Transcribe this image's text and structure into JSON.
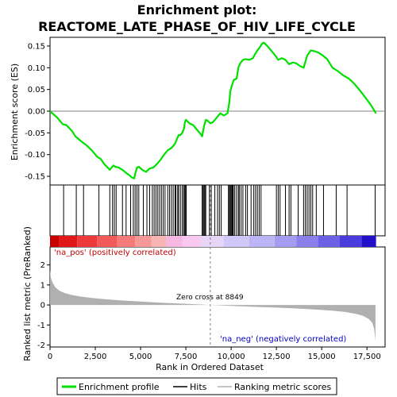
{
  "chart_data": {
    "type": "line",
    "title_line1": "Enrichment plot:",
    "title_line2": "REACTOME_LATE_PHASE_OF_HIV_LIFE_CYCLE",
    "es_ylabel": "Enrichment score (ES)",
    "metric_ylabel": "Ranked list metric (PreRanked)",
    "xlabel": "Rank in Ordered Dataset",
    "x_ticks": [
      "0",
      "2,500",
      "5,000",
      "7,500",
      "10,000",
      "12,500",
      "15,000",
      "17,500"
    ],
    "es_ticks": [
      "0.15",
      "0.10",
      "0.05",
      "0.00",
      "-0.05",
      "-0.10",
      "-0.15"
    ],
    "metric_ticks": [
      "2",
      "1",
      "0",
      "-1",
      "-2"
    ],
    "xlim": [
      0,
      18500
    ],
    "es_ylim": [
      -0.17,
      0.17
    ],
    "metric_ylim": [
      -2.1,
      2.9
    ],
    "zero_cross_label": "Zero cross at 8849",
    "zero_cross_rank": 8849,
    "pos_label": "'na_pos' (positively correlated)",
    "neg_label": "'na_neg' (negatively correlated)",
    "legend": {
      "enrichment": "Enrichment profile",
      "hits": "Hits",
      "metric": "Ranking metric scores"
    },
    "colors": {
      "enrichment": "#00e000",
      "hits": "#000000",
      "metric_fill": "#b0b0b0",
      "zero_line": "#808080"
    },
    "es_profile": [
      [
        0,
        0.0
      ],
      [
        400,
        -0.015
      ],
      [
        700,
        -0.03
      ],
      [
        900,
        -0.032
      ],
      [
        1200,
        -0.045
      ],
      [
        1400,
        -0.058
      ],
      [
        1600,
        -0.065
      ],
      [
        1800,
        -0.072
      ],
      [
        2000,
        -0.078
      ],
      [
        2300,
        -0.09
      ],
      [
        2600,
        -0.105
      ],
      [
        2800,
        -0.11
      ],
      [
        3000,
        -0.122
      ],
      [
        3300,
        -0.135
      ],
      [
        3400,
        -0.13
      ],
      [
        3500,
        -0.125
      ],
      [
        3600,
        -0.128
      ],
      [
        3800,
        -0.13
      ],
      [
        4000,
        -0.135
      ],
      [
        4200,
        -0.142
      ],
      [
        4400,
        -0.148
      ],
      [
        4500,
        -0.152
      ],
      [
        4650,
        -0.155
      ],
      [
        4700,
        -0.145
      ],
      [
        4800,
        -0.13
      ],
      [
        4900,
        -0.128
      ],
      [
        5100,
        -0.135
      ],
      [
        5300,
        -0.14
      ],
      [
        5500,
        -0.132
      ],
      [
        5700,
        -0.13
      ],
      [
        5900,
        -0.122
      ],
      [
        6100,
        -0.112
      ],
      [
        6300,
        -0.1
      ],
      [
        6500,
        -0.09
      ],
      [
        6700,
        -0.085
      ],
      [
        6900,
        -0.075
      ],
      [
        7000,
        -0.065
      ],
      [
        7100,
        -0.055
      ],
      [
        7200,
        -0.055
      ],
      [
        7300,
        -0.05
      ],
      [
        7400,
        -0.04
      ],
      [
        7450,
        -0.025
      ],
      [
        7500,
        -0.02
      ],
      [
        7700,
        -0.028
      ],
      [
        7900,
        -0.032
      ],
      [
        8100,
        -0.042
      ],
      [
        8300,
        -0.052
      ],
      [
        8400,
        -0.058
      ],
      [
        8500,
        -0.035
      ],
      [
        8600,
        -0.02
      ],
      [
        8700,
        -0.022
      ],
      [
        8849,
        -0.028
      ],
      [
        9000,
        -0.025
      ],
      [
        9200,
        -0.015
      ],
      [
        9400,
        -0.005
      ],
      [
        9600,
        -0.01
      ],
      [
        9800,
        -0.005
      ],
      [
        9900,
        0.02
      ],
      [
        9950,
        0.045
      ],
      [
        10050,
        0.06
      ],
      [
        10150,
        0.072
      ],
      [
        10300,
        0.075
      ],
      [
        10400,
        0.1
      ],
      [
        10500,
        0.11
      ],
      [
        10650,
        0.118
      ],
      [
        10800,
        0.12
      ],
      [
        11000,
        0.118
      ],
      [
        11200,
        0.122
      ],
      [
        11300,
        0.13
      ],
      [
        11450,
        0.14
      ],
      [
        11600,
        0.148
      ],
      [
        11700,
        0.155
      ],
      [
        11800,
        0.158
      ],
      [
        12000,
        0.15
      ],
      [
        12200,
        0.14
      ],
      [
        12400,
        0.13
      ],
      [
        12600,
        0.118
      ],
      [
        12800,
        0.122
      ],
      [
        13000,
        0.118
      ],
      [
        13200,
        0.108
      ],
      [
        13400,
        0.112
      ],
      [
        13600,
        0.11
      ],
      [
        13800,
        0.104
      ],
      [
        14000,
        0.1
      ],
      [
        14200,
        0.128
      ],
      [
        14400,
        0.14
      ],
      [
        14600,
        0.138
      ],
      [
        14800,
        0.135
      ],
      [
        15000,
        0.13
      ],
      [
        15300,
        0.12
      ],
      [
        15600,
        0.1
      ],
      [
        15900,
        0.092
      ],
      [
        16200,
        0.082
      ],
      [
        16500,
        0.075
      ],
      [
        16800,
        0.063
      ],
      [
        17100,
        0.048
      ],
      [
        17400,
        0.032
      ],
      [
        17700,
        0.015
      ],
      [
        17950,
        -0.002
      ],
      [
        18000,
        -0.005
      ]
    ],
    "metric_profile": [
      [
        0,
        1.75
      ],
      [
        50,
        1.35
      ],
      [
        150,
        1.1
      ],
      [
        300,
        0.88
      ],
      [
        500,
        0.72
      ],
      [
        800,
        0.6
      ],
      [
        1200,
        0.5
      ],
      [
        1700,
        0.42
      ],
      [
        2300,
        0.35
      ],
      [
        3000,
        0.29
      ],
      [
        4000,
        0.22
      ],
      [
        5000,
        0.17
      ],
      [
        6000,
        0.12
      ],
      [
        7000,
        0.08
      ],
      [
        8000,
        0.04
      ],
      [
        8849,
        0.0
      ],
      [
        9500,
        -0.03
      ],
      [
        10500,
        -0.07
      ],
      [
        11500,
        -0.1
      ],
      [
        12500,
        -0.13
      ],
      [
        13500,
        -0.17
      ],
      [
        14500,
        -0.22
      ],
      [
        15500,
        -0.28
      ],
      [
        16300,
        -0.35
      ],
      [
        16900,
        -0.45
      ],
      [
        17300,
        -0.55
      ],
      [
        17600,
        -0.7
      ],
      [
        17800,
        -0.9
      ],
      [
        17900,
        -1.2
      ],
      [
        17970,
        -1.8
      ]
    ],
    "hit_ranks": [
      750,
      1450,
      1850,
      2700,
      3300,
      3450,
      3550,
      3650,
      4000,
      4200,
      4450,
      4600,
      4700,
      4800,
      4900,
      5150,
      5350,
      5500,
      5650,
      5750,
      5850,
      5950,
      6050,
      6150,
      6250,
      6350,
      6500,
      6600,
      6700,
      6800,
      6900,
      6950,
      7050,
      7100,
      7200,
      7300,
      7380,
      7420,
      7480,
      7520,
      8400,
      8450,
      8500,
      8550,
      8600,
      8800,
      8900,
      9100,
      9250,
      9350,
      9450,
      9850,
      9900,
      9950,
      10000,
      10050,
      10080,
      10120,
      10200,
      10300,
      10400,
      10450,
      10550,
      10650,
      10800,
      10900,
      11100,
      11250,
      11350,
      11450,
      11550,
      11650,
      12500,
      12600,
      12700,
      13000,
      13200,
      13300,
      13700,
      14000,
      14100,
      14200,
      14300,
      14400,
      14500,
      14700,
      15100,
      15800,
      16400,
      17950
    ],
    "bar_segments": [
      [
        0,
        500,
        "#c80000"
      ],
      [
        500,
        1500,
        "#e01818"
      ],
      [
        1500,
        2600,
        "#ec3a3a"
      ],
      [
        2600,
        3700,
        "#f25a5a"
      ],
      [
        3700,
        4700,
        "#f57a7a"
      ],
      [
        4700,
        5600,
        "#f79898"
      ],
      [
        5600,
        6400,
        "#f9b4b4"
      ],
      [
        6400,
        7300,
        "#f5b8e0"
      ],
      [
        7300,
        8300,
        "#f8c8f0"
      ],
      [
        8300,
        9600,
        "#e8d4f8"
      ],
      [
        9600,
        11000,
        "#d0c8f8"
      ],
      [
        11000,
        12400,
        "#bcb4f4"
      ],
      [
        12400,
        13600,
        "#a49cf0"
      ],
      [
        13600,
        14800,
        "#8a80ec"
      ],
      [
        14800,
        16000,
        "#6c60e4"
      ],
      [
        16000,
        17200,
        "#4a3cdc"
      ],
      [
        17200,
        18000,
        "#2010c8"
      ]
    ]
  }
}
